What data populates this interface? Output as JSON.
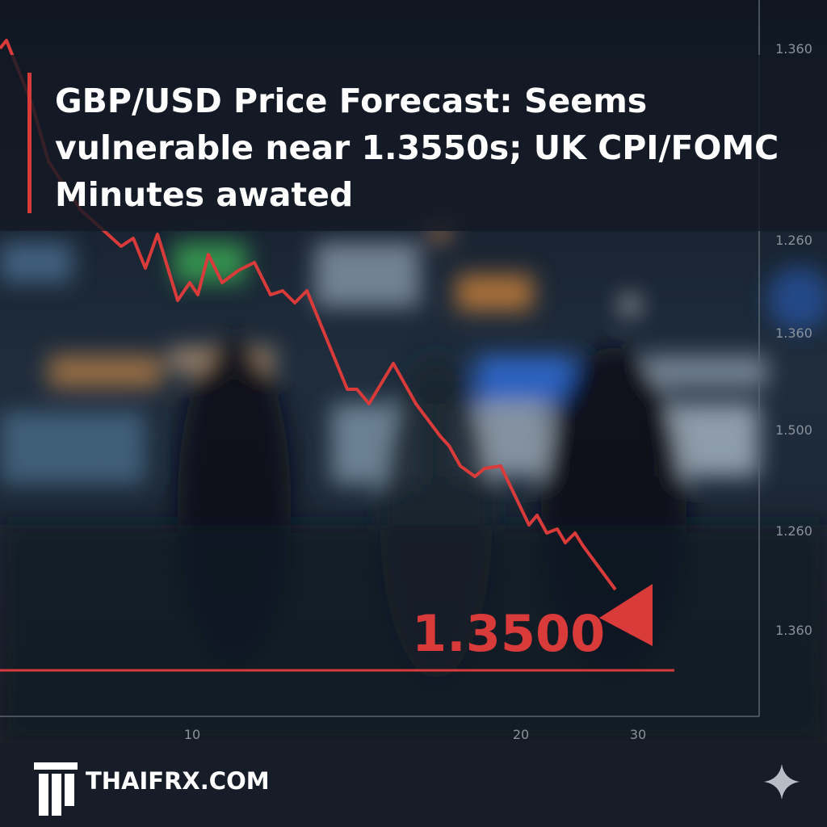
{
  "headline": "GBP/USD Price Forecast: Seems vulnerable near 1.3550s; UK CPI/FOMC Minutes awated",
  "price_label": "1.3500",
  "y_axis_labels": [
    "1.360",
    "1.260",
    "1.360",
    "1.500",
    "1.260",
    "1.360"
  ],
  "x_axis_labels": [
    "10",
    "20",
    "30"
  ],
  "brand": "THAIFRX.COM"
}
